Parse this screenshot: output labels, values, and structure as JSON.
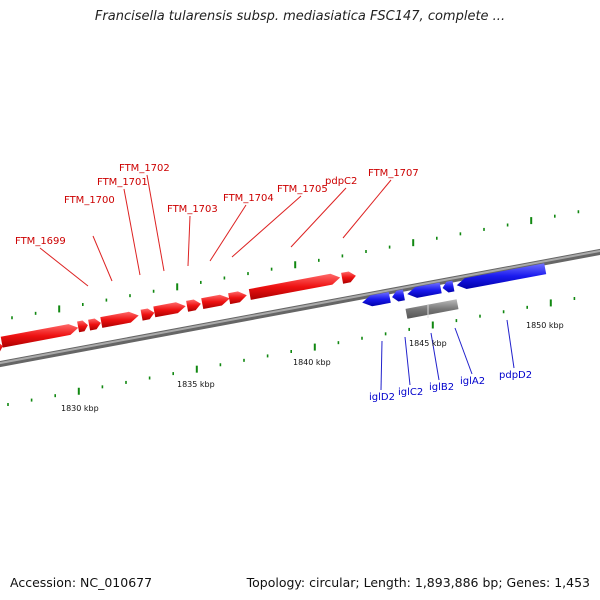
{
  "title": "Francisella tularensis subsp. mediasiatica FSC147, complete ...",
  "footer": {
    "accession": "Accession: NC_010677",
    "summary": "Topology: circular; Length: 1,893,886 bp; Genes: 1,453"
  },
  "colors": {
    "forward_gene": "#ee1111",
    "reverse_gene": "#1a1aee",
    "other_feature": "#777777",
    "backbone": "#888888",
    "tick": "#118811"
  },
  "scale": {
    "labels": [
      "1830 kbp",
      "1835 kbp",
      "1840 kbp",
      "1845 kbp",
      "1850 kbp"
    ]
  },
  "forward_genes": [
    {
      "name": "FTM_1699"
    },
    {
      "name": "FTM_1700"
    },
    {
      "name": "FTM_1701"
    },
    {
      "name": "FTM_1702"
    },
    {
      "name": "FTM_1703"
    },
    {
      "name": "FTM_1704"
    },
    {
      "name": "FTM_1705"
    },
    {
      "name": "pdpC2"
    },
    {
      "name": "FTM_1707"
    }
  ],
  "reverse_genes": [
    {
      "name": "iglD2"
    },
    {
      "name": "iglC2"
    },
    {
      "name": "iglB2"
    },
    {
      "name": "iglA2"
    },
    {
      "name": "pdpD2"
    }
  ]
}
